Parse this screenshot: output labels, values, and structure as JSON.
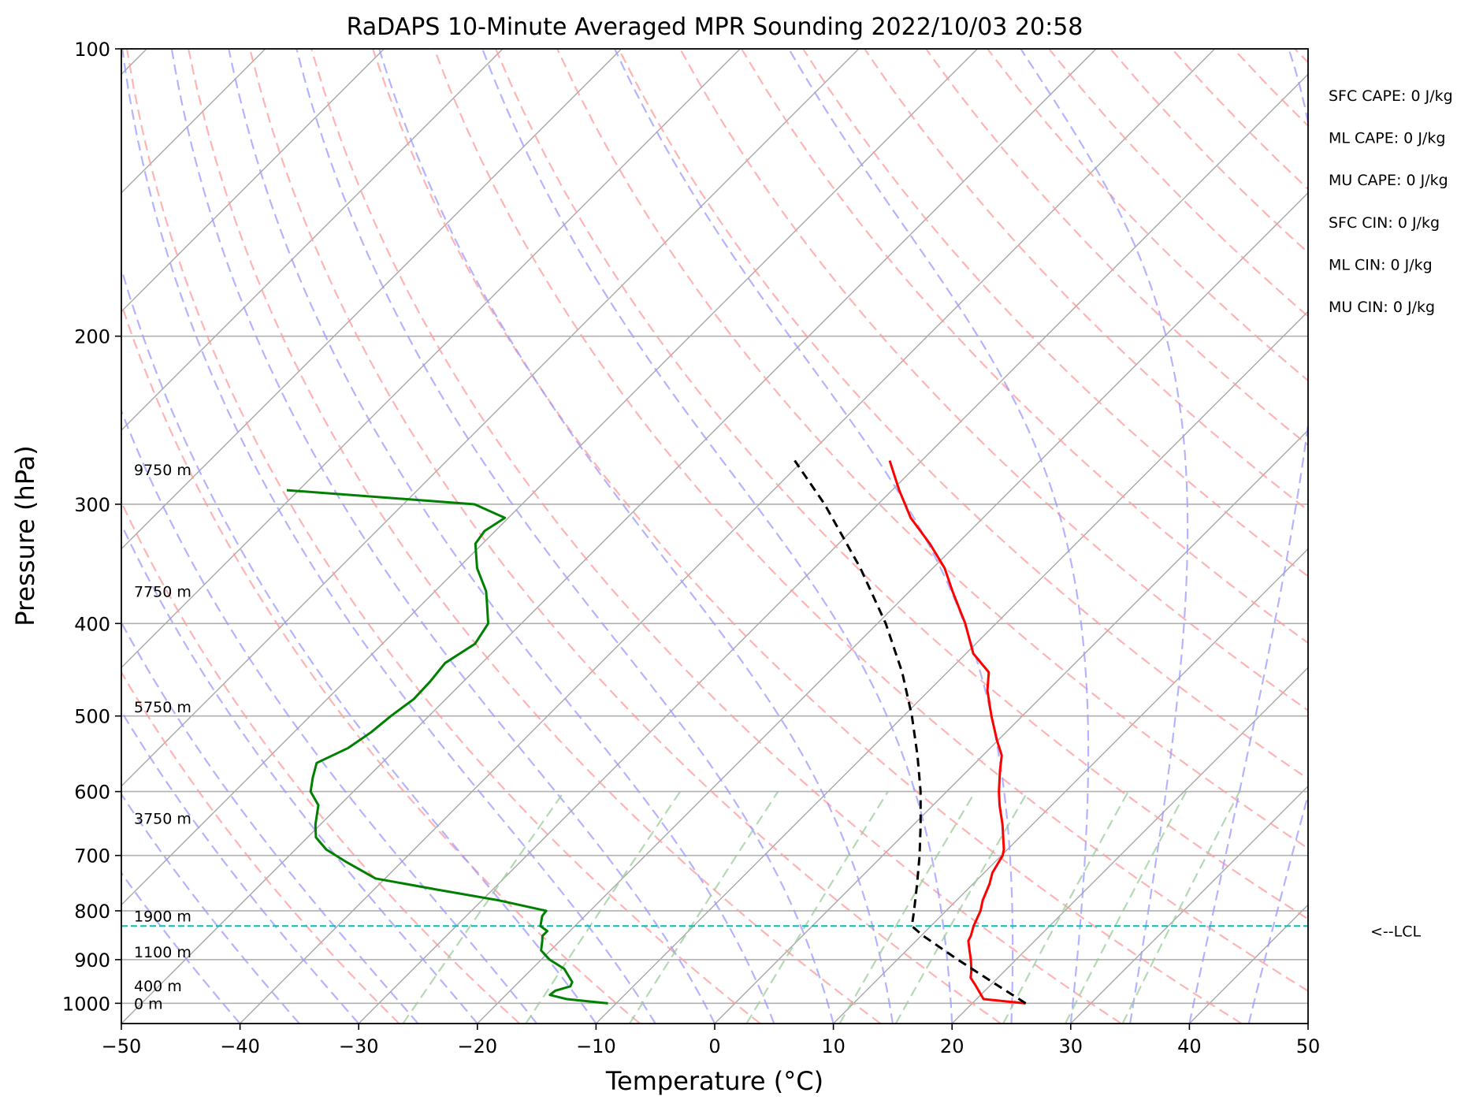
{
  "chart_data": {
    "type": "skew-t",
    "title": "RaDAPS 10-Minute Averaged MPR Sounding 2022/10/03 20:58",
    "xlabel": "Temperature (°C)",
    "ylabel": "Pressure (hPa)",
    "xlim": [
      -50,
      50
    ],
    "ylim": [
      1050,
      100
    ],
    "y_scale": "log",
    "skew_deg": 45,
    "grid": true,
    "x_ticks": [
      -50,
      -40,
      -30,
      -20,
      -10,
      0,
      10,
      20,
      30,
      40,
      50
    ],
    "x_tick_labels": [
      "−50",
      "−40",
      "−30",
      "−20",
      "−10",
      "0",
      "10",
      "20",
      "30",
      "40",
      "50"
    ],
    "y_ticks": [
      1000,
      900,
      800,
      700,
      600,
      500,
      400,
      300,
      200,
      100
    ],
    "y_tick_labels": [
      "1000",
      "900",
      "800",
      "700",
      "600",
      "500",
      "400",
      "300",
      "200",
      "100"
    ],
    "reference_lines": {
      "isotherms_color": "#a8a8a8",
      "dry_adiabats_color": "#ff9999",
      "moist_adiabats_color": "#9999ff",
      "mixing_ratio_color": "#99cc99",
      "dry_adiabat_theta_c": [
        -30,
        -20,
        -10,
        0,
        10,
        20,
        30,
        40,
        50,
        60,
        70,
        80,
        90,
        100,
        110,
        120,
        130,
        140,
        150,
        160,
        170,
        180,
        190,
        200
      ],
      "moist_adiabat_start_c": [
        -40,
        -35,
        -30,
        -25,
        -20,
        -15,
        -10,
        -5,
        0,
        5,
        10,
        15,
        20,
        25,
        30,
        35,
        40,
        45
      ],
      "mixing_ratio_surface_c": [
        -26.8,
        -16.5,
        -7.8,
        2,
        9.8,
        14.5,
        23.5,
        28.7,
        33.5
      ]
    },
    "series": [
      {
        "key": "temperature",
        "color": "#ff0000",
        "points": [
          [
            1000,
            24.5
          ],
          [
            990,
            20.6
          ],
          [
            960,
            18.9
          ],
          [
            940,
            17.7
          ],
          [
            925,
            17.2
          ],
          [
            900,
            16.2
          ],
          [
            880,
            15.3
          ],
          [
            860,
            14.4
          ],
          [
            850,
            14.2
          ],
          [
            830,
            13.6
          ],
          [
            800,
            12.9
          ],
          [
            780,
            12.2
          ],
          [
            750,
            11.4
          ],
          [
            730,
            10.7
          ],
          [
            700,
            10.1
          ],
          [
            690,
            9.7
          ],
          [
            650,
            7.5
          ],
          [
            620,
            5.6
          ],
          [
            600,
            4.4
          ],
          [
            570,
            2.7
          ],
          [
            550,
            1.6
          ],
          [
            530,
            -0.1
          ],
          [
            500,
            -2.6
          ],
          [
            470,
            -5.1
          ],
          [
            450,
            -6.5
          ],
          [
            430,
            -9.4
          ],
          [
            400,
            -12.6
          ],
          [
            370,
            -16.4
          ],
          [
            350,
            -19.0
          ],
          [
            330,
            -22.3
          ],
          [
            310,
            -26.1
          ],
          [
            290,
            -29.4
          ],
          [
            270,
            -32.7
          ]
        ]
      },
      {
        "key": "dewpoint",
        "color": "#008000",
        "points": [
          [
            1000,
            -10.7
          ],
          [
            990,
            -14.5
          ],
          [
            980,
            -16.3
          ],
          [
            970,
            -16.2
          ],
          [
            960,
            -15.3
          ],
          [
            950,
            -15.5
          ],
          [
            920,
            -17.3
          ],
          [
            900,
            -19.3
          ],
          [
            880,
            -20.8
          ],
          [
            860,
            -21.5
          ],
          [
            850,
            -21.9
          ],
          [
            840,
            -21.9
          ],
          [
            830,
            -22.9
          ],
          [
            810,
            -23.6
          ],
          [
            800,
            -23.7
          ],
          [
            780,
            -28.6
          ],
          [
            760,
            -34.7
          ],
          [
            740,
            -40.8
          ],
          [
            710,
            -44.8
          ],
          [
            690,
            -47.4
          ],
          [
            670,
            -49.3
          ],
          [
            650,
            -50.4
          ],
          [
            620,
            -51.8
          ],
          [
            600,
            -53.6
          ],
          [
            580,
            -54.6
          ],
          [
            560,
            -55.5
          ],
          [
            540,
            -54.1
          ],
          [
            520,
            -53.5
          ],
          [
            500,
            -53.2
          ],
          [
            480,
            -52.7
          ],
          [
            460,
            -52.8
          ],
          [
            440,
            -53.1
          ],
          [
            420,
            -52.2
          ],
          [
            400,
            -52.8
          ],
          [
            380,
            -54.7
          ],
          [
            370,
            -55.7
          ],
          [
            350,
            -58.4
          ],
          [
            330,
            -60.6
          ],
          [
            320,
            -60.9
          ],
          [
            310,
            -60.3
          ],
          [
            300,
            -64.0
          ],
          [
            290,
            -81.0
          ]
        ]
      },
      {
        "key": "parcel",
        "color": "#000000",
        "dashed": true,
        "points": [
          [
            1000,
            24.5
          ],
          [
            950,
            19.9
          ],
          [
            900,
            15.1
          ],
          [
            850,
            10.2
          ],
          [
            830,
            8.4
          ],
          [
            800,
            7.3
          ],
          [
            750,
            5.3
          ],
          [
            700,
            3.1
          ],
          [
            650,
            0.6
          ],
          [
            600,
            -2.2
          ],
          [
            550,
            -5.5
          ],
          [
            500,
            -9.3
          ],
          [
            450,
            -13.8
          ],
          [
            400,
            -19.3
          ],
          [
            350,
            -26.1
          ],
          [
            300,
            -34.5
          ],
          [
            270,
            -40.7
          ]
        ]
      }
    ],
    "lcl": {
      "pressure": 830,
      "label": "<--LCL",
      "color": "#00bfbf"
    },
    "height_annotations": [
      {
        "label": "0 m",
        "pressure": 1000
      },
      {
        "label": "400 m",
        "pressure": 958
      },
      {
        "label": "1100 m",
        "pressure": 883
      },
      {
        "label": "1900 m",
        "pressure": 810
      },
      {
        "label": "3750 m",
        "pressure": 640
      },
      {
        "label": "5750 m",
        "pressure": 489
      },
      {
        "label": "7750 m",
        "pressure": 370
      },
      {
        "label": "9750 m",
        "pressure": 276
      }
    ],
    "indices": [
      "SFC CAPE: 0 J/kg",
      "ML CAPE: 0 J/kg",
      "MU CAPE: 0 J/kg",
      "SFC CIN: 0 J/kg",
      "ML CIN: 0 J/kg",
      "MU CIN: 0 J/kg"
    ]
  }
}
